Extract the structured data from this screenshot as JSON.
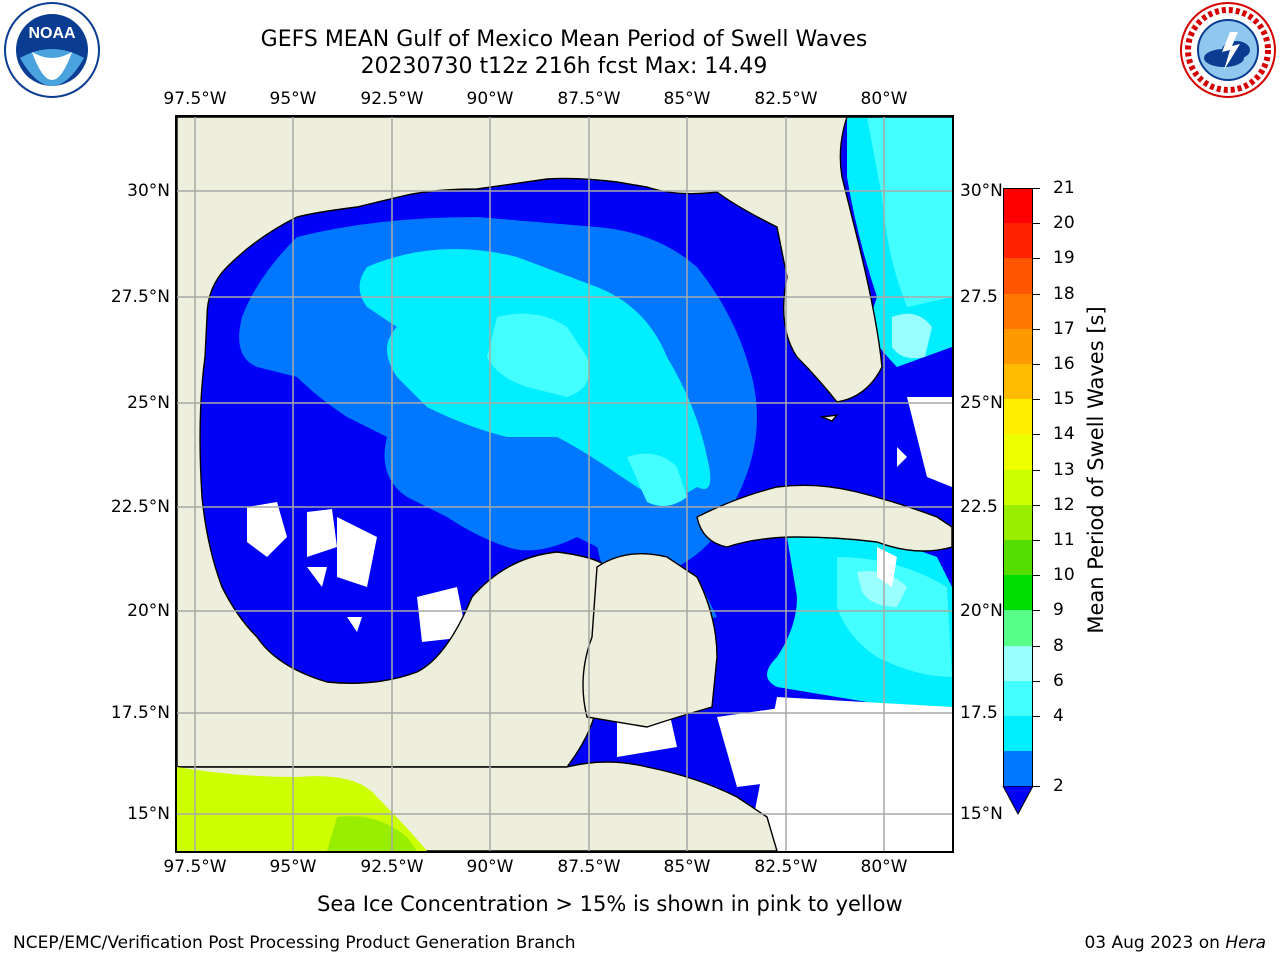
{
  "header": {
    "title_line1": "GEFS MEAN Gulf of Mexico Mean Period of Swell Waves",
    "title_line2": "20230730 t12z 216h fcst   Max: 14.49"
  },
  "map": {
    "lon_labels": [
      "97.5°W",
      "95°W",
      "92.5°W",
      "90°W",
      "87.5°W",
      "85°W",
      "82.5°W",
      "80°W"
    ],
    "lat_labels_left": [
      "30°N",
      "27.5°N",
      "25°N",
      "22.5°N",
      "20°N",
      "17.5°N",
      "15°N"
    ],
    "lat_labels_right": [
      "30°N",
      "27.5",
      "25°N",
      "22.5",
      "20°N",
      "17.5",
      "15°N"
    ],
    "colors": {
      "land": "#eeeedd",
      "ocean_base": "#0000f6",
      "swell_2_4": "#0077ff",
      "swell_4_6": "#00eeff",
      "swell_6_8": "#44ffff",
      "swell_8_9": "#99ffff",
      "swell_12_13": "#ccff00",
      "swell_11_12": "#99ee00",
      "missing": "#ffffff"
    }
  },
  "colorbar": {
    "label": "Mean Period of Swell Waves [s]",
    "ticks": [
      "21",
      "20",
      "19",
      "18",
      "17",
      "16",
      "15",
      "14",
      "13",
      "12",
      "11",
      "10",
      "9",
      "8",
      "6",
      "4",
      "2"
    ],
    "colors": [
      "#ff0000",
      "#ff2200",
      "#ff5500",
      "#ff7700",
      "#ff9900",
      "#ffbb00",
      "#ffee00",
      "#eeff00",
      "#ccff00",
      "#99ee00",
      "#55dd00",
      "#00dd00",
      "#55ff88",
      "#99ffff",
      "#44ffff",
      "#00eeff",
      "#0077ff"
    ],
    "underflow_color": "#0000f6"
  },
  "footer": {
    "note": "Sea Ice Concentration > 15% is shown in pink to yellow",
    "credit": "NCEP/EMC/Verification Post Processing Product Generation Branch",
    "date_prefix": "03 Aug 2023 on ",
    "date_host": "Hera"
  },
  "logos": {
    "noaa_icon": "noaa-logo-icon",
    "noaa_text": "NOAA",
    "nws_icon": "nws-logo-icon"
  }
}
